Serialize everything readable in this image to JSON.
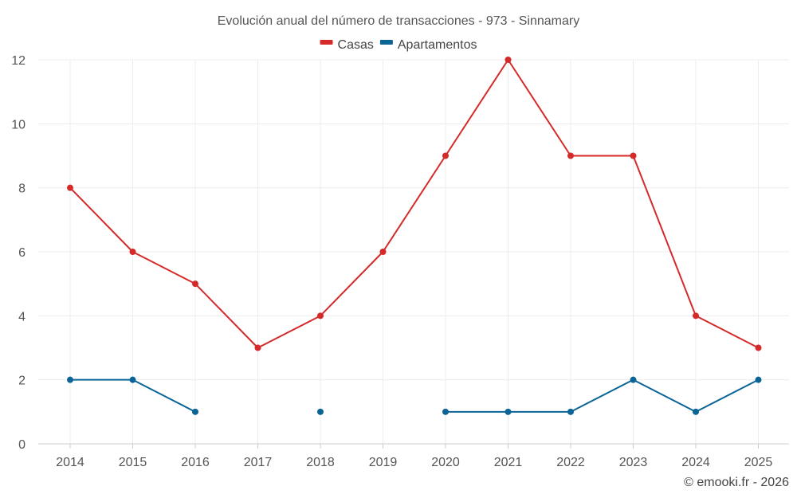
{
  "chart_data": {
    "type": "line",
    "title": "Evolución anual del número de transacciones - 973 - Sinnamary",
    "categories": [
      "2014",
      "2015",
      "2016",
      "2017",
      "2018",
      "2019",
      "2020",
      "2021",
      "2022",
      "2023",
      "2024",
      "2025"
    ],
    "series": [
      {
        "name": "Casas",
        "color": "#d42a2a",
        "values": [
          8,
          6,
          5,
          3,
          4,
          6,
          9,
          12,
          9,
          9,
          4,
          3
        ]
      },
      {
        "name": "Apartamentos",
        "color": "#0a6496",
        "values": [
          2,
          2,
          1,
          null,
          1,
          null,
          1,
          1,
          1,
          2,
          1,
          2
        ]
      }
    ],
    "ylim": [
      0,
      12
    ],
    "yticks": [
      0,
      2,
      4,
      6,
      8,
      10,
      12
    ],
    "grid": true,
    "legend_position": "top-center",
    "xlabel": "",
    "ylabel": ""
  },
  "credit": "© emooki.fr - 2026"
}
